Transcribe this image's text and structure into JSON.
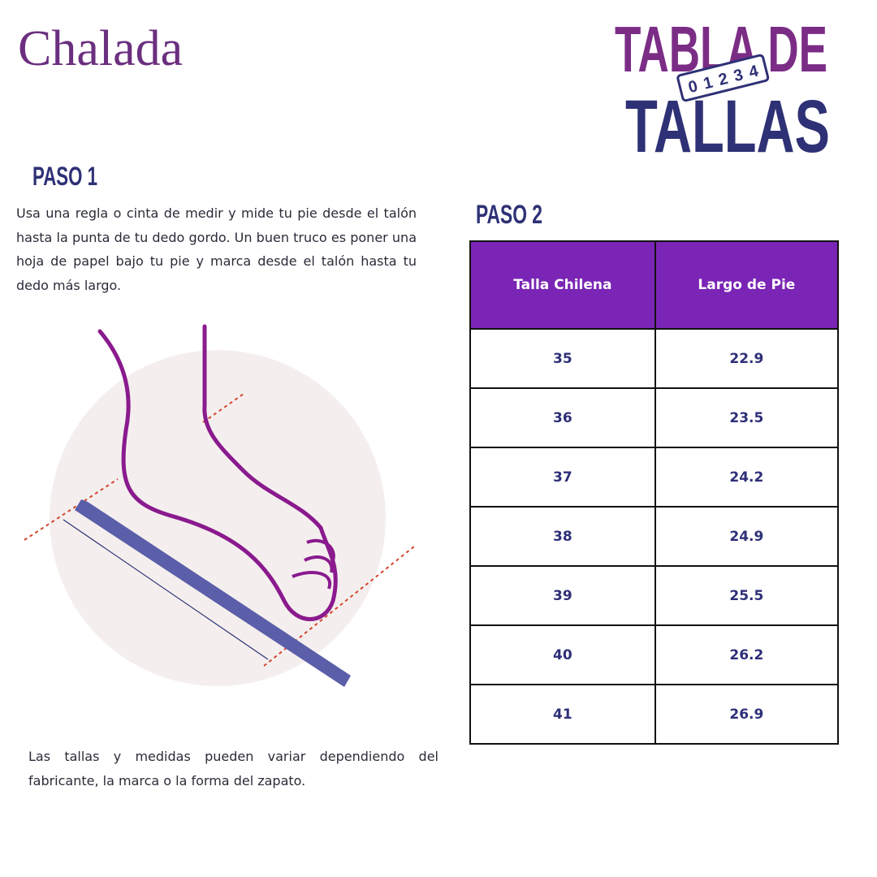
{
  "logo": "Chalada",
  "header": {
    "title_line1": "TABLA DE",
    "title_line2": "TALLAS",
    "ruler_digits": "01234"
  },
  "step1": {
    "title": "PASO 1",
    "text": "Usa una regla o cinta de medir y mide tu pie desde el talón hasta la punta de tu dedo gordo. Un buen truco es poner una hoja de papel bajo tu pie y marca desde el talón hasta tu dedo más largo."
  },
  "step2": {
    "title": "PASO 2"
  },
  "table": {
    "columns": [
      "Talla Chilena",
      "Largo de Pie"
    ],
    "rows": [
      [
        35,
        22.9
      ],
      [
        36,
        23.5
      ],
      [
        37,
        24.2
      ],
      [
        38,
        24.9
      ],
      [
        39,
        25.5
      ],
      [
        40,
        26.2
      ],
      [
        41,
        26.9
      ]
    ]
  },
  "note": "Las tallas y medidas pueden variar dependiendo del fabricante, la marca o la forma del zapato."
}
